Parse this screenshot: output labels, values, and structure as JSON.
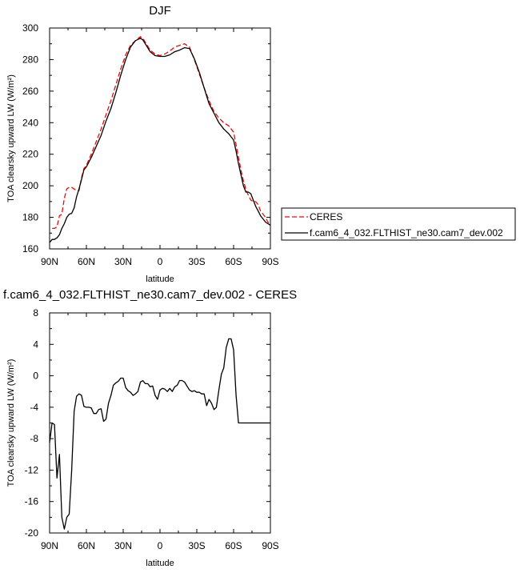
{
  "chart_data": [
    {
      "type": "line",
      "title": "DJF",
      "xlabel": "latitude",
      "ylabel": "TOA clearsky upward LW (W/m²)",
      "xlim": [
        -90,
        90
      ],
      "ylim": [
        160,
        300
      ],
      "xticks": [
        -90,
        -60,
        -30,
        0,
        30,
        60,
        90
      ],
      "xtick_labels": [
        "90N",
        "60N",
        "30N",
        "0",
        "30S",
        "60S",
        "90S"
      ],
      "yticks": [
        160,
        180,
        200,
        220,
        240,
        260,
        280,
        300
      ],
      "ytick_labels": [
        "160",
        "180",
        "200",
        "220",
        "240",
        "260",
        "280",
        "300"
      ],
      "grid": false,
      "legend_position": "right-middle, outside plot",
      "series": [
        {
          "name": "CERES",
          "color": "#ff0000",
          "style": "dashed",
          "x": [
            -88,
            -86,
            -84,
            -82,
            -80,
            -78,
            -76,
            -74,
            -72,
            -70,
            -68,
            -66,
            -64,
            -62,
            -60,
            -56,
            -52,
            -48,
            -44,
            -40,
            -36,
            -32,
            -28,
            -24,
            -20,
            -16,
            -14,
            -12,
            -8,
            -4,
            0,
            4,
            8,
            12,
            16,
            20,
            24,
            28,
            32,
            36,
            40,
            44,
            48,
            52,
            56,
            60,
            62,
            64,
            66,
            68,
            70,
            72,
            74,
            76,
            78,
            80,
            82,
            84,
            86,
            88,
            90
          ],
          "y": [
            173,
            173,
            174,
            181,
            182,
            192,
            198,
            199,
            199,
            198,
            197,
            197,
            205,
            211,
            213,
            220,
            228,
            236,
            245,
            254,
            264,
            274,
            283,
            289,
            292,
            294.5,
            293.5,
            291,
            286,
            283.5,
            282.5,
            283.5,
            285.5,
            288,
            289,
            290,
            288,
            280,
            271,
            262,
            254,
            247,
            243,
            240,
            238,
            234,
            226,
            218,
            210,
            203,
            198,
            194,
            191,
            190,
            190,
            188,
            184,
            182,
            180,
            177,
            175
          ]
        },
        {
          "name": "f.cam6_4_032.FLTHIST_ne30.cam7_dev.002",
          "color": "#000000",
          "style": "solid",
          "x": [
            -90,
            -88,
            -86,
            -84,
            -82,
            -80,
            -78,
            -76,
            -74,
            -72,
            -70,
            -68,
            -66,
            -64,
            -62,
            -60,
            -56,
            -52,
            -48,
            -44,
            -40,
            -36,
            -32,
            -28,
            -24,
            -20,
            -16,
            -14,
            -12,
            -8,
            -4,
            0,
            4,
            8,
            12,
            16,
            20,
            24,
            28,
            32,
            36,
            40,
            44,
            48,
            52,
            56,
            60,
            62,
            64,
            66,
            68,
            70,
            72,
            74,
            76,
            78,
            80,
            82,
            84,
            86,
            88,
            90
          ],
          "y": [
            164,
            166,
            166,
            167,
            169,
            173,
            176,
            180,
            182,
            182.5,
            186,
            193,
            198,
            204,
            210,
            212,
            218,
            225,
            232,
            241,
            249,
            259,
            270,
            280,
            288,
            292,
            293.5,
            292.5,
            290,
            285,
            282.5,
            282,
            282,
            283,
            285,
            286,
            287.5,
            287,
            280.5,
            272,
            262,
            252,
            246,
            240,
            236,
            233,
            229,
            222,
            214,
            207,
            200,
            196,
            196,
            195,
            191,
            187,
            184,
            181,
            179,
            177,
            176,
            175
          ]
        }
      ]
    },
    {
      "type": "line",
      "title": "f.cam6_4_032.FLTHIST_ne30.cam7_dev.002 - CERES",
      "xlabel": "latitude",
      "ylabel": "TOA clearsky upward LW (W/m²)",
      "xlim": [
        -90,
        90
      ],
      "ylim": [
        -20,
        8
      ],
      "xticks": [
        -90,
        -60,
        -30,
        0,
        30,
        60,
        90
      ],
      "xtick_labels": [
        "90N",
        "60N",
        "30N",
        "0",
        "30S",
        "60S",
        "90S"
      ],
      "yticks": [
        -20,
        -16,
        -12,
        -8,
        -4,
        0,
        4,
        8
      ],
      "ytick_labels": [
        "-20",
        "-16",
        "-12",
        "-8",
        "-4",
        "0",
        "4",
        "8"
      ],
      "grid": false,
      "series": [
        {
          "color": "#000000",
          "style": "solid",
          "x": [
            -90,
            -88,
            -86,
            -84,
            -82,
            -80,
            -78,
            -76,
            -74,
            -72,
            -70,
            -68,
            -66,
            -64,
            -62,
            -60,
            -58,
            -56,
            -54,
            -52,
            -50,
            -48,
            -46,
            -44,
            -42,
            -40,
            -38,
            -36,
            -34,
            -32,
            -30,
            -28,
            -26,
            -24,
            -22,
            -20,
            -18,
            -16,
            -14,
            -12,
            -10,
            -8,
            -6,
            -4,
            -2,
            0,
            2,
            4,
            6,
            8,
            10,
            12,
            14,
            16,
            18,
            20,
            22,
            24,
            26,
            28,
            30,
            32,
            34,
            36,
            38,
            40,
            42,
            44,
            46,
            48,
            50,
            52,
            54,
            56,
            58,
            60,
            62,
            64,
            66,
            68,
            70,
            72,
            74,
            76,
            78,
            80,
            82,
            84,
            86,
            88,
            90
          ],
          "y": [
            -8.5,
            -6,
            -6.2,
            -13,
            -10,
            -18,
            -19.5,
            -18,
            -17.6,
            -12,
            -4.5,
            -2.6,
            -2.3,
            -2.5,
            -3.9,
            -4.0,
            -4.0,
            -4.1,
            -4.8,
            -4.8,
            -4.3,
            -4.2,
            -5.8,
            -5.5,
            -3.5,
            -2.5,
            -1.2,
            -0.9,
            -0.7,
            -0.3,
            -0.3,
            -1.5,
            -1.9,
            -2.1,
            -2.5,
            -2.3,
            -2.0,
            -0.8,
            -0.6,
            -1.0,
            -1.0,
            -1.4,
            -1.3,
            -2.5,
            -3.0,
            -1.8,
            -1.6,
            -1.7,
            -2.0,
            -1.6,
            -2.0,
            -1.4,
            -1.2,
            -0.6,
            -0.6,
            -0.8,
            -1.3,
            -1.8,
            -2.0,
            -1.9,
            -2.1,
            -2.1,
            -2.3,
            -2.3,
            -3.8,
            -3.0,
            -3.5,
            -4.3,
            -4.0,
            -1.8,
            0.2,
            1.0,
            3.6,
            4.7,
            4.7,
            3.3,
            -2.5,
            -6.0,
            -6.0,
            -6.0,
            -6.0,
            -6.0,
            -6.0,
            -6.0,
            -6.0,
            -6.0,
            -6.0,
            -6.0,
            -6.0,
            -6.0,
            -6.0
          ]
        }
      ]
    }
  ]
}
